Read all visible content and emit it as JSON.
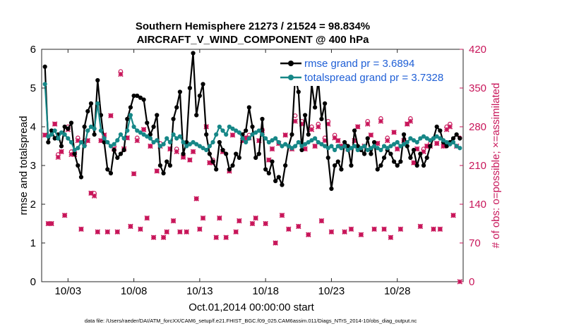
{
  "chart_data": {
    "type": "line",
    "title": "Southern Hemisphere 21273 / 21524 = 98.834%",
    "subtitle": "AIRCRAFT_V_WIND_COMPONENT @ 400 hPa",
    "xlabel": "Oct.01,2014 00:00:00 start",
    "ylabel_left": "rmse and totalspread",
    "ylabel_right": "# of obs: o=possible; ×=assimilated",
    "xlim": [
      1.0,
      33.0
    ],
    "ylim_left": [
      0,
      6
    ],
    "ylim_right": [
      0,
      420
    ],
    "x_ticks": [
      3,
      8,
      13,
      18,
      23,
      28
    ],
    "x_tick_labels": [
      "10/03",
      "10/08",
      "10/13",
      "10/18",
      "10/23",
      "10/28"
    ],
    "y_ticks_left": [
      0,
      1,
      2,
      3,
      4,
      5,
      6
    ],
    "y_tick_labels_left": [
      "0",
      "1",
      "2",
      "3",
      "4",
      "5",
      "6"
    ],
    "y_ticks_right": [
      0,
      70,
      140,
      210,
      280,
      350,
      420
    ],
    "y_tick_labels_right": [
      "0",
      "70",
      "140",
      "210",
      "280",
      "350",
      "420"
    ],
    "x": [
      1.25,
      1.5,
      1.75,
      2.0,
      2.25,
      2.5,
      2.75,
      3.0,
      3.25,
      3.5,
      3.75,
      4.0,
      4.25,
      4.5,
      4.75,
      5.0,
      5.25,
      5.5,
      5.75,
      6.0,
      6.25,
      6.5,
      6.75,
      7.0,
      7.25,
      7.5,
      7.75,
      8.0,
      8.25,
      8.5,
      8.75,
      9.0,
      9.25,
      9.5,
      9.75,
      10.0,
      10.25,
      10.5,
      10.75,
      11.0,
      11.25,
      11.5,
      11.75,
      12.0,
      12.25,
      12.5,
      12.75,
      13.0,
      13.25,
      13.5,
      13.75,
      14.0,
      14.25,
      14.5,
      14.75,
      15.0,
      15.25,
      15.5,
      15.75,
      16.0,
      16.25,
      16.5,
      16.75,
      17.0,
      17.25,
      17.5,
      17.75,
      18.0,
      18.25,
      18.5,
      18.75,
      19.0,
      19.25,
      19.5,
      19.75,
      20.0,
      20.25,
      20.5,
      20.75,
      21.0,
      21.25,
      21.5,
      21.75,
      22.0,
      22.25,
      22.5,
      22.75,
      23.0,
      23.25,
      23.5,
      23.75,
      24.0,
      24.25,
      24.5,
      24.75,
      25.0,
      25.25,
      25.5,
      25.75,
      26.0,
      26.25,
      26.5,
      26.75,
      27.0,
      27.25,
      27.5,
      27.75,
      28.0,
      28.25,
      28.5,
      28.75,
      29.0,
      29.25,
      29.5,
      29.75,
      30.0,
      30.25,
      30.5,
      30.75,
      31.0,
      31.25,
      31.5,
      31.75,
      32.0,
      32.25,
      32.5,
      32.75
    ],
    "series": [
      {
        "name": "rmse",
        "legend_label": "rmse grand pr = 3.6894",
        "color": "#000000",
        "values": [
          5.55,
          3.6,
          3.9,
          3.7,
          3.8,
          3.5,
          4.0,
          3.95,
          4.1,
          3.3,
          3.0,
          2.7,
          4.0,
          4.4,
          4.6,
          3.8,
          5.2,
          4.3,
          3.6,
          2.9,
          2.8,
          3.4,
          3.2,
          3.3,
          3.4,
          4.2,
          4.5,
          4.8,
          4.8,
          4.75,
          4.7,
          4.1,
          3.8,
          4.0,
          4.3,
          3.0,
          2.8,
          3.1,
          3.0,
          4.2,
          4.5,
          4.9,
          3.3,
          3.6,
          5.0,
          5.9,
          4.3,
          4.8,
          5.1,
          3.8,
          3.3,
          3.1,
          2.9,
          3.6,
          3.4,
          3.3,
          2.9,
          3.0,
          3.3,
          3.2,
          3.8,
          3.9,
          4.5,
          4.0,
          3.2,
          3.3,
          4.2,
          2.9,
          2.8,
          3.1,
          2.6,
          2.7,
          2.5,
          3.0,
          3.5,
          3.8,
          5.3,
          4.9,
          3.4,
          4.3,
          3.8,
          5.1,
          4.5,
          5.2,
          4.2,
          4.6,
          3.2,
          2.4,
          3.0,
          3.1,
          2.9,
          3.6,
          3.5,
          3.0,
          3.9,
          3.5,
          3.4,
          3.3,
          3.7,
          3.3,
          3.6,
          2.9,
          3.0,
          3.2,
          3.4,
          3.3,
          3.1,
          3.0,
          3.1,
          3.8,
          3.5,
          3.2,
          3.4,
          3.0,
          3.3,
          3.0,
          3.2,
          3.5,
          3.7,
          4.0,
          3.9,
          3.6,
          3.5,
          3.6,
          3.7,
          3.8,
          3.7
        ]
      },
      {
        "name": "totalspread",
        "legend_label": "totalspread grand pr = 3.7328",
        "color": "#168787",
        "values": [
          5.1,
          3.75,
          3.8,
          3.9,
          3.7,
          3.85,
          3.8,
          3.7,
          3.6,
          3.4,
          3.45,
          3.6,
          3.5,
          3.9,
          4.0,
          3.95,
          4.6,
          3.9,
          3.7,
          3.6,
          3.5,
          3.55,
          3.65,
          3.8,
          3.7,
          3.9,
          4.3,
          4.0,
          3.9,
          3.85,
          3.8,
          3.75,
          3.7,
          3.6,
          3.65,
          3.5,
          3.55,
          3.7,
          3.6,
          3.8,
          3.7,
          3.75,
          3.6,
          3.5,
          3.55,
          3.6,
          3.55,
          3.5,
          3.45,
          3.4,
          3.5,
          3.6,
          3.8,
          4.0,
          3.9,
          3.8,
          4.0,
          3.95,
          3.9,
          3.85,
          3.7,
          3.6,
          3.7,
          3.8,
          3.85,
          3.9,
          3.8,
          3.7,
          3.6,
          3.65,
          3.7,
          3.6,
          3.5,
          3.55,
          3.5,
          3.45,
          3.5,
          3.6,
          3.5,
          3.55,
          3.6,
          3.65,
          3.7,
          3.6,
          3.55,
          3.5,
          3.45,
          3.5,
          3.4,
          3.5,
          3.45,
          3.5,
          3.4,
          3.45,
          3.5,
          3.4,
          3.45,
          3.5,
          3.4,
          3.45,
          3.5,
          3.45,
          3.4,
          3.5,
          3.45,
          3.5,
          3.55,
          3.6,
          3.5,
          3.55,
          3.6,
          3.7,
          3.65,
          3.6,
          3.7,
          3.75,
          3.7,
          3.65,
          3.7,
          3.75,
          3.7,
          3.65,
          3.6,
          3.55,
          3.6,
          3.5,
          3.45
        ]
      }
    ],
    "obs": {
      "color": "#c8165a",
      "possible_marker": "o",
      "assimilated_marker": "×",
      "x": [
        1.25,
        1.5,
        1.75,
        2.0,
        2.25,
        2.5,
        2.75,
        3.0,
        3.25,
        3.5,
        3.75,
        4.0,
        4.25,
        4.5,
        4.75,
        5.0,
        5.25,
        5.5,
        5.75,
        6.0,
        6.25,
        6.5,
        6.75,
        7.0,
        7.25,
        7.5,
        7.75,
        8.0,
        8.25,
        8.5,
        8.75,
        9.0,
        9.25,
        9.5,
        9.75,
        10.0,
        10.25,
        10.5,
        10.75,
        11.0,
        11.25,
        11.5,
        11.75,
        12.0,
        12.25,
        12.5,
        12.75,
        13.0,
        13.25,
        13.5,
        13.75,
        14.0,
        14.25,
        14.5,
        14.75,
        15.0,
        15.25,
        15.5,
        15.75,
        16.0,
        16.25,
        16.5,
        16.75,
        17.0,
        17.25,
        17.5,
        17.75,
        18.0,
        18.25,
        18.5,
        18.75,
        19.0,
        19.25,
        19.5,
        19.75,
        20.0,
        20.25,
        20.5,
        20.75,
        21.0,
        21.25,
        21.5,
        21.75,
        22.0,
        22.25,
        22.5,
        22.75,
        23.0,
        23.25,
        23.5,
        23.75,
        24.0,
        24.25,
        24.5,
        24.75,
        25.0,
        25.25,
        25.5,
        25.75,
        26.0,
        26.25,
        26.5,
        26.75,
        27.0,
        27.25,
        27.5,
        27.75,
        28.0,
        28.25,
        28.5,
        28.75,
        29.0,
        29.25,
        29.5,
        29.75,
        30.0,
        30.25,
        30.5,
        30.75,
        31.0,
        31.25,
        31.5,
        31.75,
        32.0,
        32.25,
        32.5,
        32.75
      ],
      "possible": [
        265,
        105,
        105,
        285,
        230,
        235,
        120,
        280,
        235,
        235,
        260,
        95,
        255,
        255,
        160,
        160,
        90,
        255,
        265,
        90,
        300,
        245,
        90,
        380,
        240,
        260,
        100,
        195,
        260,
        95,
        275,
        115,
        245,
        80,
        200,
        250,
        80,
        90,
        240,
        110,
        240,
        90,
        225,
        90,
        220,
        235,
        150,
        95,
        115,
        280,
        215,
        220,
        80,
        115,
        235,
        80,
        200,
        265,
        90,
        110,
        255,
        260,
        265,
        105,
        115,
        255,
        275,
        105,
        220,
        240,
        70,
        250,
        120,
        265,
        95,
        240,
        300,
        100,
        290,
        240,
        85,
        280,
        245,
        285,
        110,
        260,
        290,
        90,
        265,
        255,
        245,
        90,
        240,
        95,
        255,
        280,
        85,
        245,
        290,
        265,
        95,
        250,
        295,
        95,
        260,
        80,
        270,
        240,
        95,
        255,
        285,
        295,
        215,
        240,
        100,
        240,
        245,
        250,
        95,
        250,
        95,
        245,
        280,
        285,
        120,
        245,
        260
      ],
      "assimilated": [
        265,
        105,
        105,
        285,
        225,
        235,
        120,
        275,
        230,
        230,
        255,
        95,
        250,
        255,
        160,
        155,
        90,
        255,
        265,
        90,
        300,
        240,
        90,
        375,
        240,
        260,
        100,
        195,
        255,
        95,
        275,
        115,
        245,
        80,
        200,
        245,
        80,
        90,
        240,
        110,
        235,
        90,
        225,
        90,
        220,
        235,
        150,
        95,
        115,
        280,
        215,
        215,
        80,
        115,
        235,
        80,
        200,
        265,
        90,
        110,
        255,
        260,
        260,
        105,
        115,
        255,
        270,
        105,
        220,
        240,
        70,
        250,
        120,
        265,
        95,
        240,
        290,
        100,
        285,
        240,
        85,
        275,
        245,
        280,
        110,
        255,
        285,
        90,
        260,
        255,
        245,
        90,
        240,
        95,
        255,
        280,
        85,
        245,
        285,
        265,
        95,
        250,
        290,
        95,
        255,
        80,
        270,
        240,
        95,
        255,
        285,
        290,
        215,
        240,
        100,
        235,
        245,
        245,
        95,
        250,
        95,
        245,
        275,
        280,
        120,
        245,
        0
      ]
    },
    "footnote": "data file: /Users/raeder/DAI/ATM_forcXX/CAM6_setup/f.e21.FHIST_BGC.f09_025.CAM6assim.011/Diags_NTrS_2014-10/obs_diag_output.nc"
  }
}
